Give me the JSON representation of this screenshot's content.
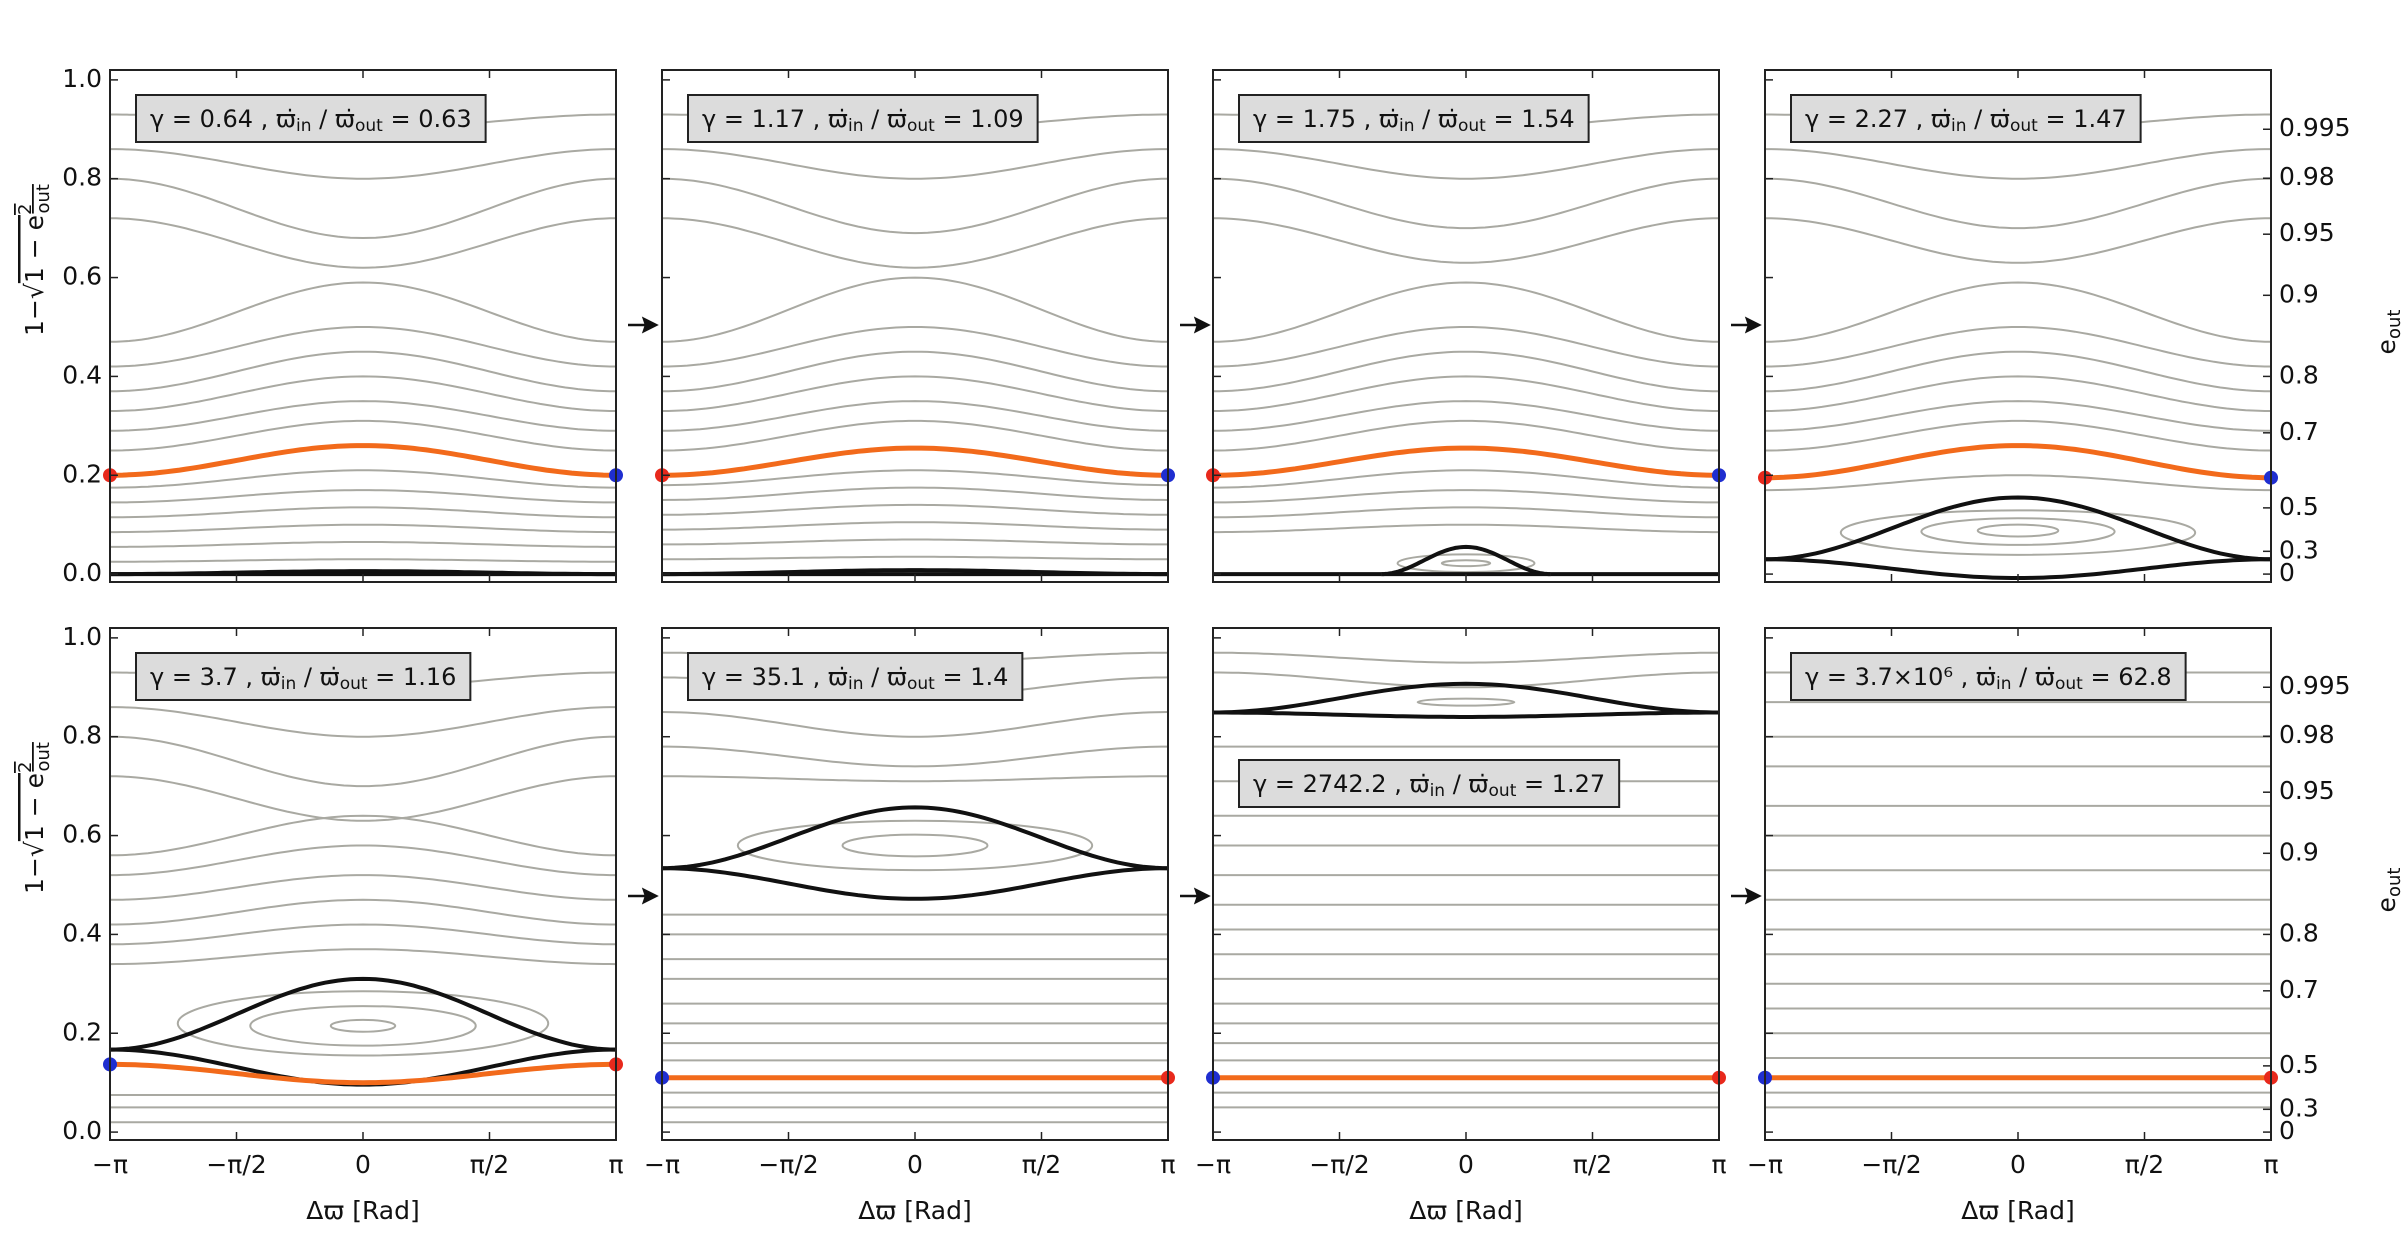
{
  "chart_data": {
    "type": "phase-portrait",
    "xlim": [
      -3.14159,
      3.14159
    ],
    "xticks": [
      {
        "value": -3.14159,
        "label": "−π"
      },
      {
        "value": -1.5708,
        "label": "−π/2"
      },
      0,
      {
        "value": 1.5708,
        "label": "π/2"
      },
      {
        "value": 3.14159,
        "label": "π"
      }
    ],
    "ylim": [
      -0.016,
      1.02
    ],
    "yticks": [
      {
        "value": 0,
        "label": "0.0"
      },
      0.2,
      0.4,
      0.6,
      0.8,
      {
        "value": 1,
        "label": "1.0"
      }
    ],
    "y2ticks": [
      0,
      0.3,
      0.5,
      0.7,
      0.8,
      0.9,
      0.95,
      0.98,
      0.995
    ],
    "xlabel": "Δϖ [Rad]",
    "ylabel": {
      "prefix": "1−√",
      "radicand": "1 − e",
      "sup": "2",
      "sub": "out"
    },
    "y2label": {
      "base": "e",
      "sub": "out"
    },
    "annotation": {
      "gamma": "γ = ",
      "comma": " ,  ",
      "rate": "ϖ̇",
      "in": "in",
      "slash": " / ",
      "out": "out",
      "eq": " = "
    },
    "orange_color": "#f26a1b",
    "panels": [
      {
        "gamma": 0.64,
        "ratio": 0.63,
        "orange": {
          "edge": 0.2,
          "center": 0.26
        },
        "start_color": "#e8291c",
        "end_color": "#1f2ed0",
        "separatrix": {
          "edge": 0.0,
          "top": 0.006,
          "bottom": 0.0,
          "halfwidth": 3.14159
        },
        "curves": [
          [
            0.025,
            0.03
          ],
          [
            0.055,
            0.065
          ],
          [
            0.085,
            0.1
          ],
          [
            0.115,
            0.135
          ],
          [
            0.145,
            0.17
          ],
          [
            0.175,
            0.21
          ],
          [
            0.25,
            0.31
          ],
          [
            0.29,
            0.35
          ],
          [
            0.33,
            0.4
          ],
          [
            0.37,
            0.45
          ],
          [
            0.42,
            0.5
          ],
          [
            0.47,
            0.59
          ],
          [
            0.72,
            0.62
          ],
          [
            0.8,
            0.68
          ],
          [
            0.86,
            0.8
          ],
          [
            0.93,
            0.9
          ]
        ],
        "islands": []
      },
      {
        "gamma": 1.17,
        "ratio": 1.09,
        "orange": {
          "edge": 0.2,
          "center": 0.255
        },
        "start_color": "#e8291c",
        "end_color": "#1f2ed0",
        "separatrix": {
          "edge": 0.0,
          "top": 0.008,
          "bottom": 0.0,
          "halfwidth": 3.14159
        },
        "curves": [
          [
            0.03,
            0.035
          ],
          [
            0.06,
            0.07
          ],
          [
            0.09,
            0.105
          ],
          [
            0.12,
            0.14
          ],
          [
            0.15,
            0.175
          ],
          [
            0.18,
            0.21
          ],
          [
            0.25,
            0.31
          ],
          [
            0.29,
            0.35
          ],
          [
            0.33,
            0.4
          ],
          [
            0.37,
            0.45
          ],
          [
            0.42,
            0.5
          ],
          [
            0.47,
            0.6
          ],
          [
            0.72,
            0.62
          ],
          [
            0.8,
            0.69
          ],
          [
            0.86,
            0.8
          ],
          [
            0.93,
            0.9
          ]
        ],
        "islands": []
      },
      {
        "gamma": 1.75,
        "ratio": 1.54,
        "orange": {
          "edge": 0.2,
          "center": 0.255
        },
        "start_color": "#e8291c",
        "end_color": "#1f2ed0",
        "separatrix": {
          "edge": 0.0,
          "top": 0.055,
          "bottom": 0.0,
          "halfwidth": 1.05
        },
        "curves": [
          [
            0.085,
            0.1
          ],
          [
            0.115,
            0.135
          ],
          [
            0.145,
            0.17
          ],
          [
            0.175,
            0.21
          ],
          [
            0.25,
            0.31
          ],
          [
            0.29,
            0.35
          ],
          [
            0.33,
            0.4
          ],
          [
            0.37,
            0.45
          ],
          [
            0.42,
            0.5
          ],
          [
            0.47,
            0.59
          ],
          [
            0.72,
            0.63
          ],
          [
            0.8,
            0.7
          ],
          [
            0.86,
            0.8
          ],
          [
            0.93,
            0.9
          ]
        ],
        "islands": [
          {
            "y": 0.022,
            "rx": 0.85,
            "ry": 0.018
          },
          {
            "y": 0.022,
            "rx": 0.3,
            "ry": 0.006
          }
        ]
      },
      {
        "gamma": 2.27,
        "ratio": 1.47,
        "orange": {
          "edge": 0.195,
          "center": 0.26
        },
        "start_color": "#e8291c",
        "end_color": "#1f2ed0",
        "separatrix": {
          "edge": 0.03,
          "top": 0.155,
          "bottom": -0.008,
          "halfwidth": 3.14159
        },
        "curves": [
          [
            0.17,
            0.2
          ],
          [
            0.25,
            0.31
          ],
          [
            0.29,
            0.35
          ],
          [
            0.33,
            0.4
          ],
          [
            0.37,
            0.45
          ],
          [
            0.42,
            0.5
          ],
          [
            0.47,
            0.59
          ],
          [
            0.72,
            0.63
          ],
          [
            0.8,
            0.7
          ],
          [
            0.86,
            0.8
          ],
          [
            0.93,
            0.9
          ]
        ],
        "islands": [
          {
            "y": 0.084,
            "rx": 2.2,
            "ry": 0.045
          },
          {
            "y": 0.086,
            "rx": 1.2,
            "ry": 0.027
          },
          {
            "y": 0.088,
            "rx": 0.5,
            "ry": 0.012
          }
        ]
      },
      {
        "gamma": 3.7,
        "ratio": 1.16,
        "orange": {
          "edge": 0.137,
          "center": 0.1
        },
        "start_color": "#1f2ed0",
        "end_color": "#e8291c",
        "separatrix": {
          "edge": 0.167,
          "top": 0.31,
          "bottom": 0.096,
          "halfwidth": 3.14159
        },
        "curves": [
          [
            0.02,
            0.02
          ],
          [
            0.05,
            0.05
          ],
          [
            0.075,
            0.075
          ],
          [
            0.34,
            0.37
          ],
          [
            0.38,
            0.42
          ],
          [
            0.42,
            0.47
          ],
          [
            0.47,
            0.52
          ],
          [
            0.52,
            0.58
          ],
          [
            0.56,
            0.64
          ],
          [
            0.72,
            0.63
          ],
          [
            0.8,
            0.7
          ],
          [
            0.86,
            0.8
          ],
          [
            0.93,
            0.9
          ]
        ],
        "islands": [
          {
            "y": 0.22,
            "rx": 2.3,
            "ry": 0.065
          },
          {
            "y": 0.215,
            "rx": 1.4,
            "ry": 0.04
          },
          {
            "y": 0.215,
            "rx": 0.4,
            "ry": 0.012
          }
        ]
      },
      {
        "gamma": 35.1,
        "ratio": 1.4,
        "orange": {
          "edge": 0.11,
          "center": 0.11
        },
        "start_color": "#1f2ed0",
        "end_color": "#e8291c",
        "separatrix": {
          "edge": 0.534,
          "top": 0.657,
          "bottom": 0.472,
          "halfwidth": 3.14159
        },
        "curves": [
          [
            0.02,
            0.02
          ],
          [
            0.05,
            0.05
          ],
          [
            0.08,
            0.08
          ],
          [
            0.145,
            0.145
          ],
          [
            0.18,
            0.18
          ],
          [
            0.22,
            0.22
          ],
          [
            0.26,
            0.26
          ],
          [
            0.31,
            0.31
          ],
          [
            0.35,
            0.35
          ],
          [
            0.4,
            0.4
          ],
          [
            0.44,
            0.44
          ],
          [
            0.72,
            0.71
          ],
          [
            0.78,
            0.74
          ],
          [
            0.85,
            0.8
          ],
          [
            0.92,
            0.88
          ],
          [
            0.97,
            0.95
          ]
        ],
        "islands": [
          {
            "y": 0.58,
            "rx": 2.2,
            "ry": 0.05
          },
          {
            "y": 0.58,
            "rx": 0.9,
            "ry": 0.022
          }
        ]
      },
      {
        "gamma": 2742.2,
        "ratio": 1.27,
        "orange": {
          "edge": 0.11,
          "center": 0.11
        },
        "start_color": "#1f2ed0",
        "end_color": "#e8291c",
        "separatrix": {
          "edge": 0.849,
          "top": 0.907,
          "bottom": 0.84,
          "halfwidth": 3.14159
        },
        "curves": [
          [
            0.05,
            0.05
          ],
          [
            0.08,
            0.08
          ],
          [
            0.145,
            0.145
          ],
          [
            0.18,
            0.18
          ],
          [
            0.22,
            0.22
          ],
          [
            0.26,
            0.26
          ],
          [
            0.31,
            0.31
          ],
          [
            0.36,
            0.36
          ],
          [
            0.41,
            0.41
          ],
          [
            0.46,
            0.46
          ],
          [
            0.52,
            0.52
          ],
          [
            0.58,
            0.58
          ],
          [
            0.64,
            0.64
          ],
          [
            0.71,
            0.71
          ],
          [
            0.78,
            0.78
          ],
          [
            0.93,
            0.9
          ],
          [
            0.97,
            0.95
          ]
        ],
        "islands": [
          {
            "y": 0.87,
            "rx": 0.6,
            "ry": 0.007
          }
        ]
      },
      {
        "gamma": {
          "value": 3700000,
          "label": "3.7×10⁶"
        },
        "ratio": 62.8,
        "orange": {
          "edge": 0.11,
          "center": 0.11
        },
        "start_color": "#1f2ed0",
        "end_color": "#e8291c",
        "curves": [
          [
            0.05,
            0.05
          ],
          [
            0.08,
            0.08
          ],
          [
            0.15,
            0.15
          ],
          [
            0.2,
            0.2
          ],
          [
            0.25,
            0.25
          ],
          [
            0.3,
            0.3
          ],
          [
            0.36,
            0.36
          ],
          [
            0.41,
            0.41
          ],
          [
            0.47,
            0.47
          ],
          [
            0.53,
            0.53
          ],
          [
            0.6,
            0.6
          ],
          [
            0.66,
            0.66
          ],
          [
            0.74,
            0.74
          ],
          [
            0.8,
            0.8
          ],
          [
            0.87,
            0.87
          ],
          [
            0.93,
            0.93
          ]
        ],
        "islands": []
      }
    ]
  }
}
